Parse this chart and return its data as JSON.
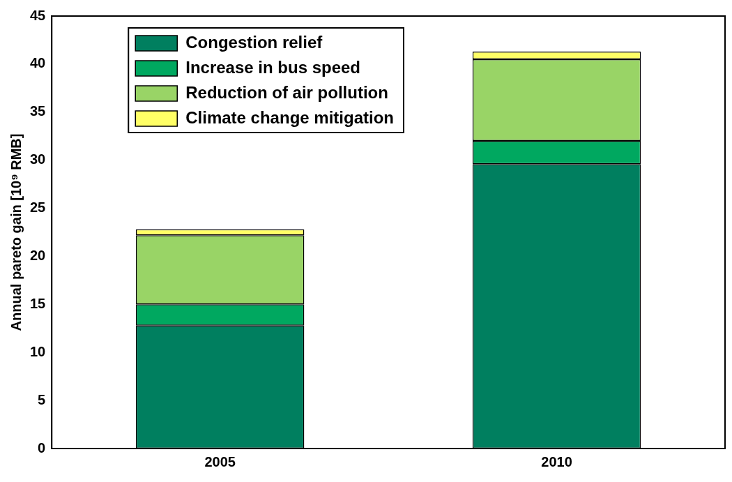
{
  "chart_data": {
    "type": "bar",
    "stacked": true,
    "ylabel": "Annual pareto gain [10⁹ RMB]",
    "categories": [
      "2005",
      "2010"
    ],
    "series": [
      {
        "name": "Congestion relief",
        "color": "#007f5f",
        "values": [
          12.8,
          29.6
        ]
      },
      {
        "name": "Increase in bus speed",
        "color": "#00a860",
        "values": [
          2.2,
          2.4
        ]
      },
      {
        "name": "Reduction of air pollution",
        "color": "#99d466",
        "values": [
          7.2,
          8.5
        ]
      },
      {
        "name": "Climate change mitigation",
        "color": "#ffff66",
        "values": [
          0.6,
          0.8
        ]
      }
    ],
    "ylim": [
      0,
      45
    ],
    "yticks": [
      0,
      5,
      10,
      15,
      20,
      25,
      30,
      35,
      40,
      45
    ],
    "grid": false,
    "legend": "top left"
  }
}
